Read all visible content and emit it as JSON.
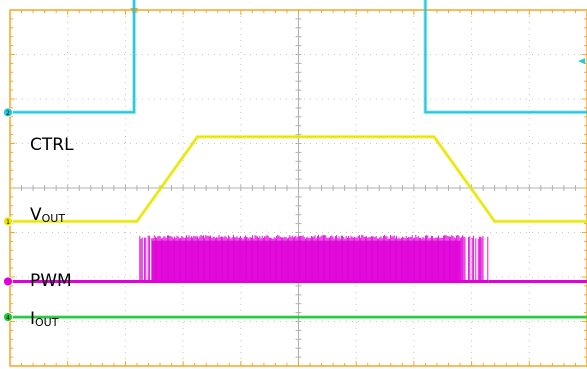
{
  "chart_data": {
    "type": "line",
    "title": "",
    "xlabel": "",
    "ylabel": "",
    "grid": true,
    "grid_divisions": {
      "x": 10,
      "y": 8
    },
    "x_range_div": [
      0,
      10
    ],
    "trigger_mark_div": 2.15,
    "colors": {
      "background": "#ffffff",
      "graticule": "#c8c8c8",
      "frame": "#f5a623",
      "trigger": "#f5a623"
    },
    "series": [
      {
        "key": "ctrl",
        "label_main": "CTRL",
        "label_sub": "",
        "channel": "2",
        "color": "#25c6e0",
        "baseline_div": 5.7,
        "points_div": [
          [
            0,
            5.7
          ],
          [
            2.15,
            5.7
          ],
          [
            2.15,
            8.4
          ],
          [
            7.2,
            8.4
          ],
          [
            7.2,
            5.7
          ],
          [
            10,
            5.7
          ]
        ]
      },
      {
        "key": "vout",
        "label_main": "V",
        "label_sub": "OUT",
        "channel": "1",
        "color": "#e8e600",
        "baseline_div": 3.25,
        "points_div": [
          [
            0,
            3.25
          ],
          [
            2.2,
            3.25
          ],
          [
            3.25,
            5.15
          ],
          [
            7.35,
            5.15
          ],
          [
            8.4,
            3.25
          ],
          [
            10,
            3.25
          ]
        ]
      },
      {
        "key": "pwm",
        "label_main": "PWM",
        "label_sub": "",
        "channel": "",
        "color": "#e000d8",
        "baseline_div": 1.9,
        "burst_start_div": 2.25,
        "burst_end_div": 8.3,
        "burst_high_div": 2.95
      },
      {
        "key": "iout",
        "label_main": "I",
        "label_sub": "OUT",
        "channel": "4",
        "color": "#22c83a",
        "baseline_div": 1.1,
        "points_div": [
          [
            0,
            1.1
          ],
          [
            10,
            1.1
          ]
        ]
      }
    ]
  }
}
